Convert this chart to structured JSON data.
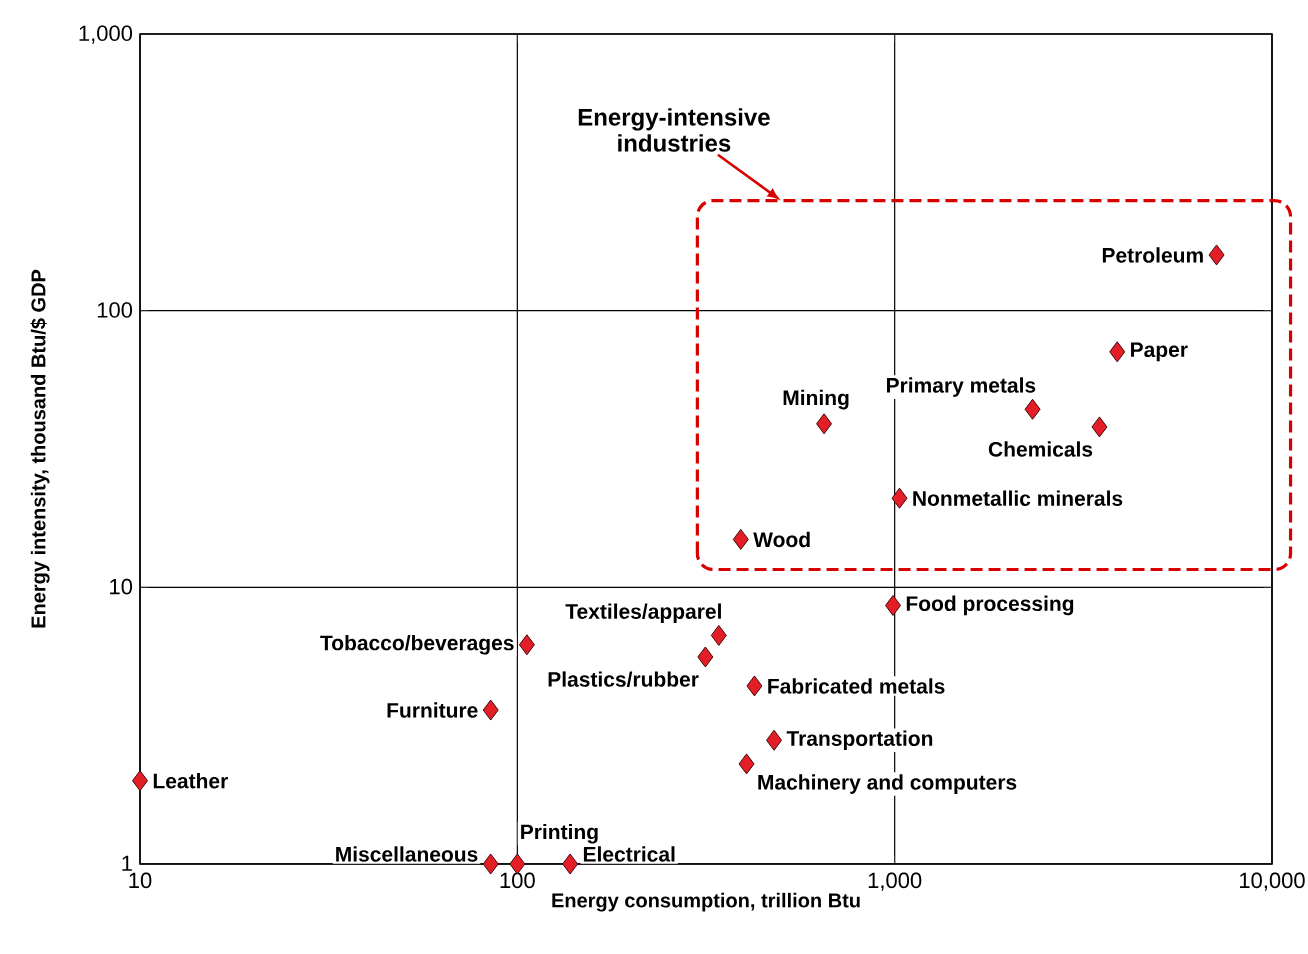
{
  "chart_data": {
    "type": "scatter",
    "xlabel": "Energy consumption, trillion Btu",
    "ylabel": "Energy intensity, thousand Btu/$ GDP",
    "annotations": [
      "Energy-intensive industries"
    ],
    "log": "xy",
    "grid": true,
    "marker": "diamond",
    "xlim": [
      10,
      10000
    ],
    "ylim": [
      1,
      1000
    ],
    "xticks": [
      10,
      100,
      {
        "value": 1000,
        "label": "1,000"
      },
      {
        "value": 10000,
        "label": "10,000"
      }
    ],
    "yticks": [
      1,
      10,
      100,
      {
        "value": 1000,
        "label": "1,000"
      }
    ],
    "series": [
      {
        "name": "Leather",
        "color": "#e41e26",
        "x": [
          10
        ],
        "values": [
          2.0
        ]
      },
      {
        "name": "Miscellaneous",
        "color": "#e41e26",
        "x": [
          85
        ],
        "values": [
          1.0
        ]
      },
      {
        "name": "Printing",
        "color": "#e41e26",
        "x": [
          100
        ],
        "values": [
          1.0
        ]
      },
      {
        "name": "Electrical",
        "color": "#e41e26",
        "x": [
          138
        ],
        "values": [
          1.0
        ]
      },
      {
        "name": "Furniture",
        "color": "#e41e26",
        "x": [
          85
        ],
        "values": [
          3.6
        ]
      },
      {
        "name": "Tobacco/beverages",
        "color": "#e41e26",
        "x": [
          106
        ],
        "values": [
          6.2
        ]
      },
      {
        "name": "Textiles/apparel",
        "color": "#e41e26",
        "x": [
          342
        ],
        "values": [
          6.7
        ]
      },
      {
        "name": "Plastics/rubber",
        "color": "#e41e26",
        "x": [
          315
        ],
        "values": [
          5.6
        ]
      },
      {
        "name": "Fabricated metals",
        "color": "#e41e26",
        "x": [
          425
        ],
        "values": [
          4.4
        ]
      },
      {
        "name": "Transportation",
        "color": "#e41e26",
        "x": [
          479
        ],
        "values": [
          2.8
        ]
      },
      {
        "name": "Machinery and computers",
        "color": "#e41e26",
        "x": [
          405
        ],
        "values": [
          2.3
        ]
      },
      {
        "name": "Food processing",
        "color": "#e41e26",
        "x": [
          990
        ],
        "values": [
          8.6
        ]
      },
      {
        "name": "Wood",
        "color": "#e41e26",
        "x": [
          391
        ],
        "values": [
          14.9
        ]
      },
      {
        "name": "Mining",
        "color": "#e41e26",
        "x": [
          650
        ],
        "values": [
          39
        ]
      },
      {
        "name": "Nonmetallic minerals",
        "color": "#e41e26",
        "x": [
          1030
        ],
        "values": [
          21
        ]
      },
      {
        "name": "Primary metals",
        "color": "#e41e26",
        "x": [
          2320
        ],
        "values": [
          44
        ]
      },
      {
        "name": "Chemicals",
        "color": "#e41e26",
        "x": [
          3490
        ],
        "values": [
          38
        ]
      },
      {
        "name": "Paper",
        "color": "#e41e26",
        "x": [
          3890
        ],
        "values": [
          71
        ]
      },
      {
        "name": "Petroleum",
        "color": "#e41e26",
        "x": [
          7130
        ],
        "values": [
          159
        ]
      }
    ]
  }
}
